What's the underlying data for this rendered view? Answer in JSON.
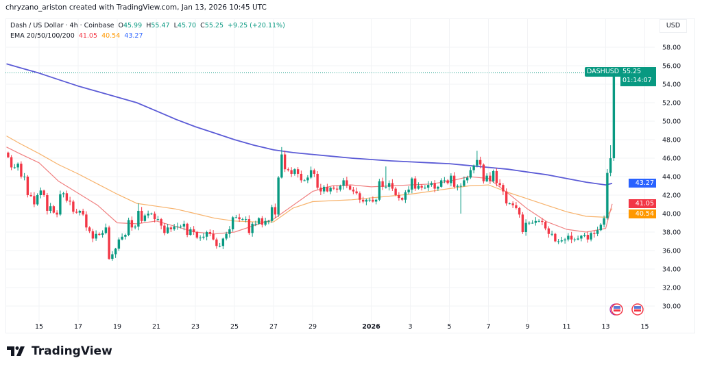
{
  "credit": "chryzano_ariston created with TradingView.com, Jan 13, 2026 10:45 UTC",
  "legend": {
    "symbol_line": "Dash / US Dollar · 4h · Coinbase",
    "open_label": "O",
    "open": "45.99",
    "high_label": "H",
    "high": "55.47",
    "low_label": "L",
    "low": "45.70",
    "close_label": "C",
    "close": "55.25",
    "change": "+9.25 (+20.11%)",
    "ema_label": "EMA 20/50/100/200",
    "ema20": "41.05",
    "ema50": "40.54",
    "ema200": "43.27"
  },
  "currency_button": "USD",
  "price_tags": {
    "symbol": "DASHUSD",
    "last_price": "55.25",
    "countdown": "01:14:07",
    "ema200": "43.27",
    "ema20": "41.05",
    "ema50": "40.54"
  },
  "colors": {
    "up": "#089981",
    "down": "#f23645",
    "ema20": "#f23645",
    "ema50": "#ff9800",
    "ema200": "#2962ff",
    "ema20_line": "#f08080",
    "ema50_line": "#f7b26b",
    "ema200_line": "#5b5bd6"
  },
  "icons": [
    "us-economic-event-icon",
    "us-economic-event-icon"
  ],
  "logo": "TradingView",
  "chart_data": {
    "type": "candlestick",
    "symbol": "DASHUSD",
    "interval": "4h",
    "first_candle": "2025-12-13 08:00",
    "first_open": 46.6,
    "closes": [
      46.1,
      45.0,
      45.0,
      45.4,
      44.0,
      44.0,
      42.0,
      41.9,
      41.0,
      42.0,
      42.5,
      42.0,
      40.3,
      40.8,
      40.1,
      39.9,
      42.1,
      42.2,
      41.4,
      41.3,
      40.2,
      40.1,
      40.3,
      39.9,
      38.5,
      38.1,
      37.3,
      37.8,
      37.7,
      37.9,
      38.5,
      35.1,
      35.6,
      36.2,
      37.2,
      37.5,
      37.7,
      39.3,
      38.5,
      38.6,
      40.3,
      39.2,
      39.8,
      40.0,
      40.0,
      39.4,
      39.4,
      38.7,
      37.9,
      38.5,
      38.3,
      38.6,
      38.6,
      38.6,
      38.9,
      37.7,
      38.3,
      38.0,
      37.4,
      37.4,
      37.5,
      38.0,
      37.8,
      37.2,
      36.5,
      36.5,
      37.3,
      37.8,
      38.3,
      39.6,
      39.6,
      39.4,
      39.4,
      39.4,
      37.9,
      38.9,
      38.9,
      39.5,
      38.8,
      39.2,
      39.2,
      40.7,
      39.9,
      43.9,
      46.4,
      44.8,
      44.7,
      44.3,
      44.8,
      44.3,
      43.6,
      43.6,
      43.9,
      44.7,
      44.3,
      42.8,
      42.4,
      42.9,
      42.4,
      42.8,
      42.7,
      42.6,
      43.0,
      43.6,
      43.0,
      42.6,
      42.4,
      42.2,
      41.5,
      41.3,
      41.5,
      41.5,
      41.3,
      41.5,
      43.5,
      42.9,
      42.9,
      43.3,
      42.7,
      42.0,
      41.7,
      41.5,
      42.3,
      42.6,
      43.8,
      42.7,
      43.0,
      42.8,
      42.8,
      43.1,
      43.3,
      42.7,
      42.9,
      43.6,
      43.6,
      43.3,
      44.1,
      42.9,
      43.0,
      43.0,
      43.6,
      43.9,
      44.7,
      45.2,
      45.8,
      45.3,
      43.5,
      44.1,
      43.5,
      44.6,
      43.3,
      43.1,
      42.4,
      41.1,
      41.1,
      40.9,
      40.6,
      39.9,
      38.0,
      39.0,
      39.0,
      39.0,
      39.2,
      39.2,
      39.1,
      38.4,
      37.8,
      37.8,
      37.0,
      37.0,
      37.1,
      37.2,
      37.6,
      37.2,
      37.2,
      37.3,
      37.6,
      37.7,
      37.2,
      37.9,
      37.8,
      38.2,
      38.8,
      39.5,
      44.4,
      45.99,
      55.25
    ],
    "last_candle": {
      "open": 45.99,
      "high": 55.47,
      "low": 45.7,
      "close": 55.25
    },
    "notable_wicks": [
      {
        "t": "2025-12-27 08:00",
        "high": 47.2
      },
      {
        "t": "2025-12-18 12:00",
        "low": 35.0
      },
      {
        "t": "2026-01-05 12:00",
        "low": 40.0
      },
      {
        "t": "2026-01-06 08:00",
        "high": 46.8
      },
      {
        "t": "2026-01-13 04:00",
        "high": 47.4
      },
      {
        "t": "2025-12-20 00:00",
        "high": 41.1
      },
      {
        "t": "2026-01-01 16:00",
        "high": 45.1
      }
    ],
    "ema": {
      "dates": [
        "2025-12-13 08:00",
        "2025-12-14",
        "2025-12-15",
        "2025-12-16",
        "2025-12-17",
        "2025-12-18",
        "2025-12-19",
        "2025-12-20",
        "2025-12-21",
        "2025-12-22",
        "2025-12-23",
        "2025-12-24",
        "2025-12-25",
        "2025-12-26",
        "2025-12-27",
        "2025-12-28",
        "2025-12-29",
        "2025-12-30",
        "2025-12-31",
        "2026-01-01",
        "2026-01-02",
        "2026-01-03",
        "2026-01-04",
        "2026-01-05",
        "2026-01-06",
        "2026-01-07",
        "2026-01-08",
        "2026-01-09",
        "2026-01-10",
        "2026-01-11",
        "2026-01-12",
        "2026-01-13",
        "2026-01-13 08:00"
      ],
      "ema20": [
        47.2,
        46.5,
        45.5,
        43.5,
        42.2,
        40.9,
        39.0,
        38.9,
        39.2,
        38.6,
        38.0,
        37.8,
        38.0,
        38.7,
        39.4,
        40.9,
        42.4,
        43.0,
        43.1,
        42.9,
        43.0,
        43.1,
        43.2,
        43.5,
        44.0,
        43.8,
        42.2,
        40.5,
        39.1,
        38.3,
        38.0,
        38.4,
        41.05
      ],
      "ema50": [
        48.4,
        47.6,
        46.5,
        45.3,
        44.3,
        43.2,
        42.1,
        41.1,
        40.8,
        40.5,
        40.0,
        39.5,
        39.2,
        39.1,
        39.1,
        40.6,
        41.3,
        41.4,
        41.5,
        41.7,
        41.9,
        42.1,
        42.4,
        42.7,
        43.0,
        43.1,
        42.3,
        41.6,
        40.9,
        40.2,
        39.7,
        39.6,
        40.54
      ],
      "ema200": [
        56.2,
        55.8,
        55.2,
        54.5,
        53.8,
        53.2,
        52.6,
        52.0,
        51.1,
        50.2,
        49.4,
        48.7,
        48.0,
        47.4,
        46.9,
        46.6,
        46.4,
        46.2,
        46.0,
        45.85,
        45.7,
        45.6,
        45.5,
        45.4,
        45.2,
        45.0,
        44.8,
        44.5,
        44.2,
        43.8,
        43.4,
        43.1,
        43.27
      ]
    },
    "y_axis": {
      "ticks": [
        "58.00",
        "56.00",
        "54.00",
        "52.00",
        "50.00",
        "48.00",
        "46.00",
        "44.00",
        "42.00",
        "40.00",
        "38.00",
        "36.00",
        "34.00",
        "32.00",
        "30.00"
      ],
      "range": [
        29,
        59
      ]
    },
    "x_axis": {
      "ticks": [
        {
          "label": "15",
          "date": "2025-12-15"
        },
        {
          "label": "17",
          "date": "2025-12-17"
        },
        {
          "label": "19",
          "date": "2025-12-19"
        },
        {
          "label": "21",
          "date": "2025-12-21"
        },
        {
          "label": "23",
          "date": "2025-12-23"
        },
        {
          "label": "25",
          "date": "2025-12-25"
        },
        {
          "label": "27",
          "date": "2025-12-27"
        },
        {
          "label": "29",
          "date": "2025-12-29"
        },
        {
          "label": "2026",
          "date": "2026-01-01"
        },
        {
          "label": "3",
          "date": "2026-01-03"
        },
        {
          "label": "5",
          "date": "2026-01-05"
        },
        {
          "label": "7",
          "date": "2026-01-07"
        },
        {
          "label": "9",
          "date": "2026-01-09"
        },
        {
          "label": "11",
          "date": "2026-01-11"
        },
        {
          "label": "13",
          "date": "2026-01-13"
        },
        {
          "label": "15",
          "date": "2026-01-15"
        }
      ]
    },
    "grid": true
  }
}
